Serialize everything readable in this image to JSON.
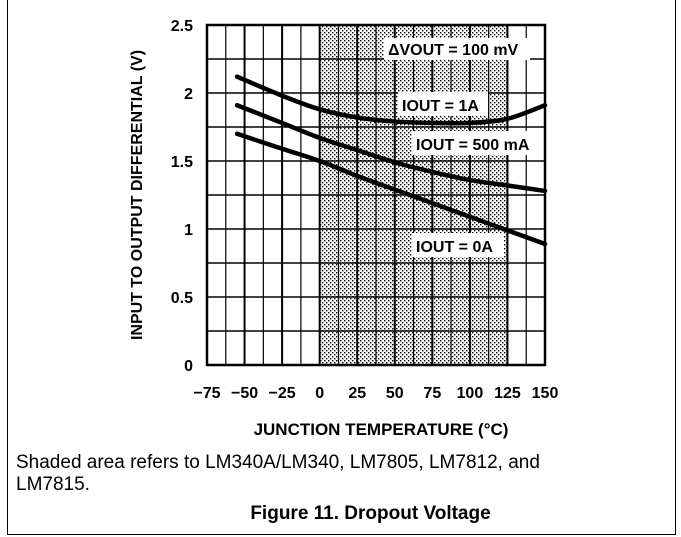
{
  "chart_data": {
    "type": "line",
    "xlabel": "JUNCTION TEMPERATURE (°C)",
    "ylabel": "INPUT TO OUTPUT DIFFERENTIAL (V)",
    "xlim": [
      -75,
      150
    ],
    "ylim": [
      0,
      2.5
    ],
    "x_ticks": [
      -75,
      -50,
      -25,
      0,
      25,
      50,
      75,
      100,
      125,
      150
    ],
    "x_tick_labels": [
      "−75",
      "−50",
      "−25",
      "0",
      "25",
      "50",
      "75",
      "100",
      "125",
      "150"
    ],
    "y_ticks": [
      0,
      0.5,
      1,
      1.5,
      2,
      2.5
    ],
    "y_tick_labels": [
      "0",
      "0.5",
      "1",
      "1.5",
      "2",
      "2.5"
    ],
    "grid": true,
    "shaded_region": {
      "x_from": 0,
      "x_to": 125
    },
    "annotation_main": "ΔVOUT = 100 mV",
    "series": [
      {
        "name": "IOUT = 1A",
        "x": [
          -55,
          -25,
          0,
          25,
          50,
          75,
          100,
          125,
          150
        ],
        "values": [
          2.12,
          1.98,
          1.88,
          1.82,
          1.79,
          1.78,
          1.78,
          1.81,
          1.91
        ]
      },
      {
        "name": "IOUT = 500 mA",
        "x": [
          -55,
          -25,
          0,
          25,
          50,
          75,
          100,
          125,
          150
        ],
        "values": [
          1.91,
          1.78,
          1.67,
          1.58,
          1.49,
          1.42,
          1.36,
          1.32,
          1.28
        ]
      },
      {
        "name": "IOUT = 0A",
        "x": [
          -55,
          -25,
          0,
          25,
          50,
          75,
          100,
          125,
          150
        ],
        "values": [
          1.7,
          1.59,
          1.5,
          1.39,
          1.29,
          1.19,
          1.09,
          0.99,
          0.89
        ]
      }
    ]
  },
  "caption": "Shaded area refers to LM340A/LM340, LM7805, LM7812, and LM7815.",
  "figure_title": "Figure 11. Dropout Voltage"
}
